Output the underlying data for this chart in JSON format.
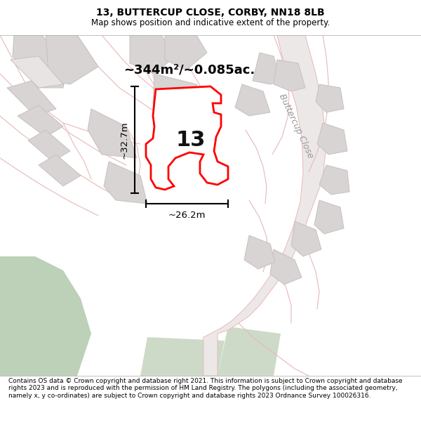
{
  "title": "13, BUTTERCUP CLOSE, CORBY, NN18 8LB",
  "subtitle": "Map shows position and indicative extent of the property.",
  "footer": "Contains OS data © Crown copyright and database right 2021. This information is subject to Crown copyright and database rights 2023 and is reproduced with the permission of HM Land Registry. The polygons (including the associated geometry, namely x, y co-ordinates) are subject to Crown copyright and database rights 2023 Ordnance Survey 100026316.",
  "area_label": "~344m²/~0.085ac.",
  "number_label": "13",
  "dim_width": "~26.2m",
  "dim_height": "~32.7m",
  "map_bg": "#f2eeee",
  "plot_fill": "#e8e4e4",
  "plot_edge": "#ff0000",
  "green_fill_dark": "#bdd0b8",
  "green_fill_light": "#cddac8",
  "road_pink": "#e8b8b8",
  "road_gray": "#c8c0c0",
  "building_fill": "#d8d4d4",
  "street_label": "Buttercup Close",
  "title_fontsize": 10,
  "subtitle_fontsize": 8.5,
  "footer_fontsize": 6.5
}
